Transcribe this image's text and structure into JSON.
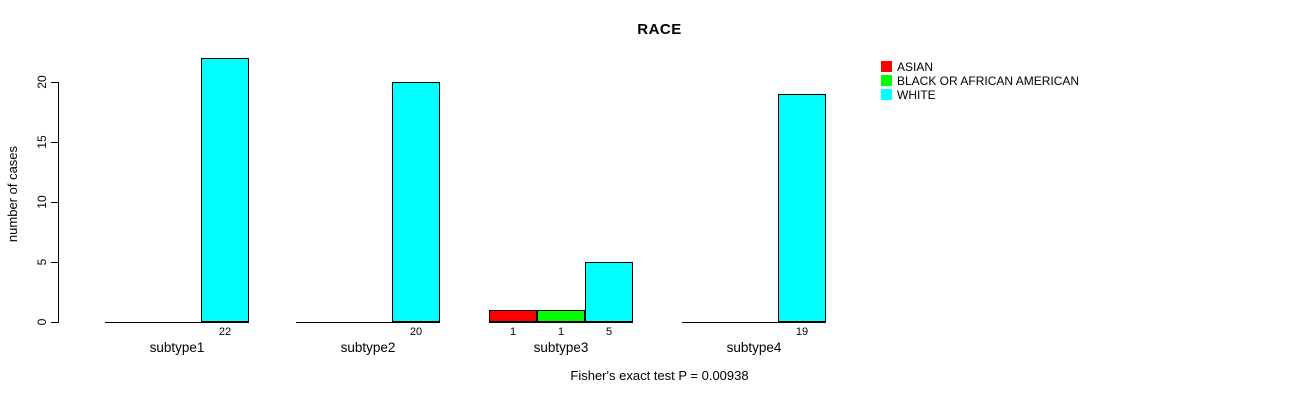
{
  "chart_data": {
    "type": "bar",
    "grouped": true,
    "title": "RACE",
    "xlabel": "",
    "ylabel": "number of cases",
    "ylim": [
      0,
      22
    ],
    "yticks": [
      0,
      5,
      10,
      15,
      20
    ],
    "grid": false,
    "legend_position": "top-right",
    "categories": [
      "subtype1",
      "subtype2",
      "subtype3",
      "subtype4"
    ],
    "series": [
      {
        "name": "ASIAN",
        "color": "#ff0000",
        "values": [
          0,
          0,
          1,
          0
        ]
      },
      {
        "name": "BLACK OR AFRICAN AMERICAN",
        "color": "#00ff00",
        "values": [
          0,
          0,
          1,
          0
        ]
      },
      {
        "name": "WHITE",
        "color": "#00ffff",
        "values": [
          22,
          20,
          5,
          19
        ]
      }
    ],
    "value_labels_shown_for_nonzero_bars": true,
    "caption": "Fisher's exact test P = 0.00938"
  },
  "colors": {
    "background": "#ffffff",
    "axis": "#000000",
    "text": "#000000"
  }
}
